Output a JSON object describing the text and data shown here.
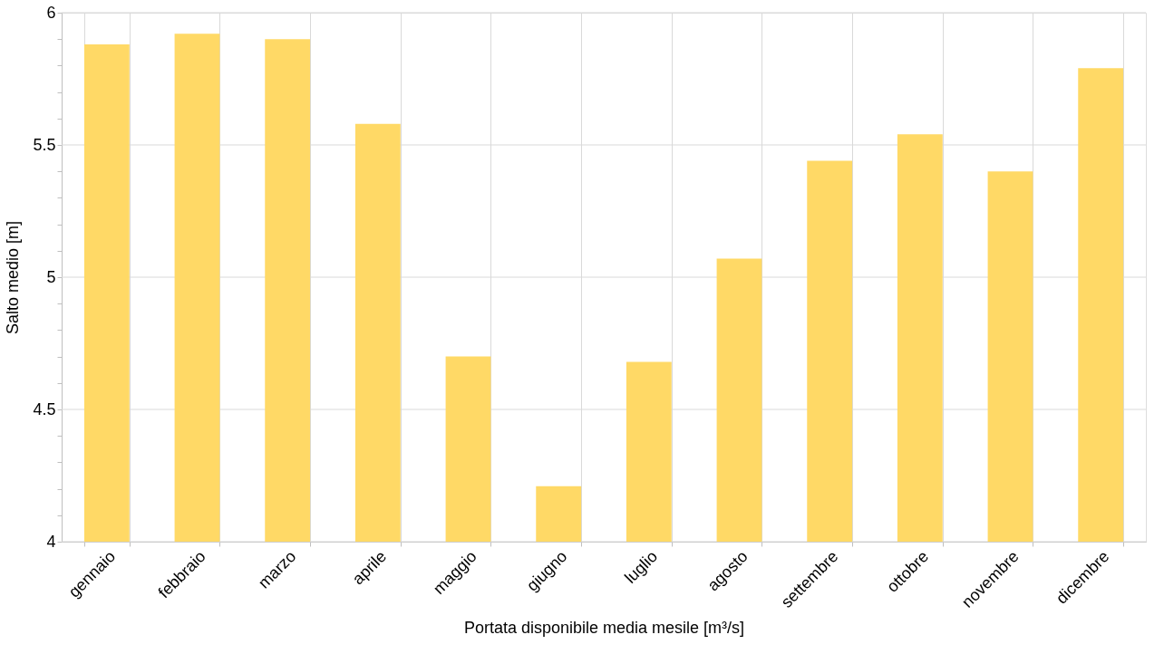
{
  "chart_data": {
    "type": "bar",
    "xlabel": "Portata disponibile media mesile [m³/s]",
    "ylabel": "Salto medio [m]",
    "categories": [
      "gennaio",
      "febbraio",
      "marzo",
      "aprile",
      "maggio",
      "giugno",
      "luglio",
      "agosto",
      "settembre",
      "ottobre",
      "novembre",
      "dicembre"
    ],
    "values": [
      5.88,
      5.92,
      5.9,
      5.58,
      4.7,
      4.21,
      4.68,
      5.07,
      5.44,
      5.54,
      5.4,
      5.79
    ],
    "color": "#ffd966",
    "ylim": [
      4,
      6
    ],
    "yticks": [
      4,
      {
        "value": 4.1,
        "label": null
      },
      {
        "value": 4.2,
        "label": null
      },
      {
        "value": 4.3,
        "label": null
      },
      {
        "value": 4.4,
        "label": null
      },
      4.5,
      {
        "value": 4.6,
        "label": null
      },
      {
        "value": 4.7,
        "label": null
      },
      {
        "value": 4.8,
        "label": null
      },
      {
        "value": 4.9,
        "label": null
      },
      5,
      {
        "value": 5.1,
        "label": null
      },
      {
        "value": 5.2,
        "label": null
      },
      {
        "value": 5.3,
        "label": null
      },
      {
        "value": 5.4,
        "label": null
      },
      5.5,
      {
        "value": 5.6,
        "label": null
      },
      {
        "value": 5.7,
        "label": null
      },
      {
        "value": 5.8,
        "label": null
      },
      {
        "value": 5.9,
        "label": null
      },
      6
    ],
    "grid": true
  }
}
